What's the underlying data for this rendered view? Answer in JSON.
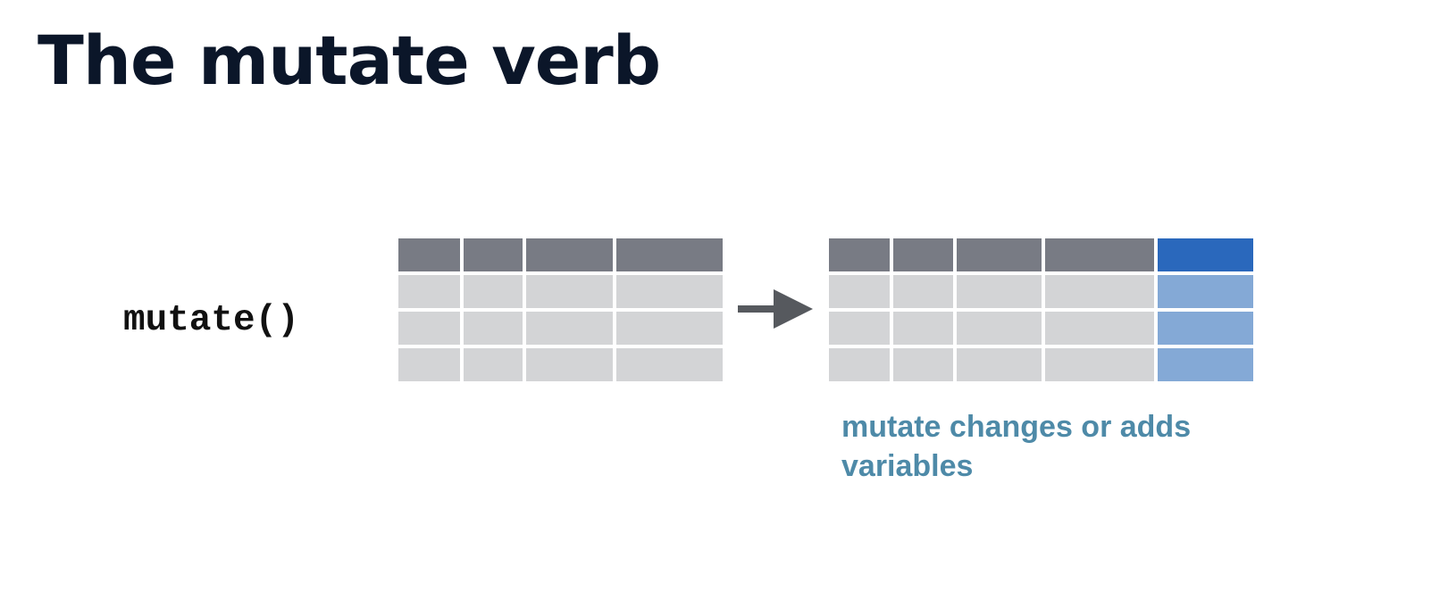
{
  "slide": {
    "title": "The mutate verb",
    "function_label": "mutate()",
    "caption": "mutate changes or adds variables"
  },
  "diagram": {
    "input_table": {
      "columns": 4,
      "body_rows": 3
    },
    "output_table": {
      "columns": 5,
      "body_rows": 3,
      "new_column_index": 4
    },
    "colors": {
      "header": "#787b84",
      "body": "#d3d4d6",
      "new_header": "#2a68bc",
      "new_body": "#84a9d6",
      "arrow": "#56595e",
      "caption": "#4e8aa8"
    }
  }
}
